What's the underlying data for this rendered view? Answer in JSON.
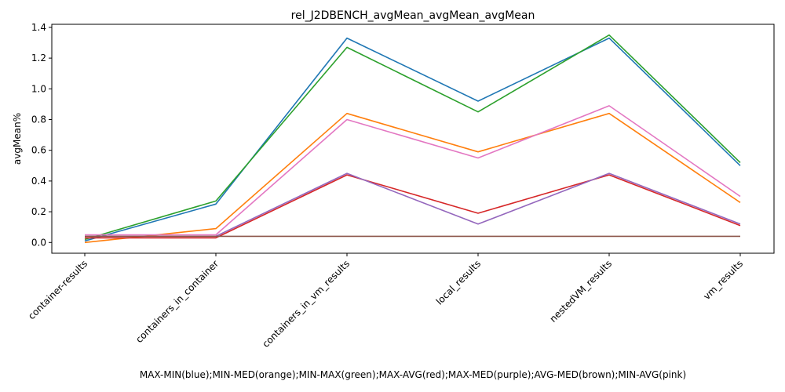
{
  "chart_data": {
    "type": "line",
    "title": "rel_J2DBENCH_avgMean_avgMean_avgMean",
    "ylabel": "avgMean%",
    "xlabel": "MAX-MIN(blue);MIN-MED(orange);MIN-MAX(green);MAX-AVG(red);MAX-MED(purple);AVG-MED(brown);MIN-AVG(pink)",
    "categories": [
      "container-results",
      "containers_in_container",
      "containers_in_vm_results",
      "local_results",
      "nestedVM_results",
      "vm_results"
    ],
    "ylim": [
      -0.07,
      1.42
    ],
    "yticks": [
      0.0,
      0.2,
      0.4,
      0.6,
      0.8,
      1.0,
      1.2,
      1.4
    ],
    "ytick_labels": [
      "0.0",
      "0.2",
      "0.4",
      "0.6",
      "0.8",
      "1.0",
      "1.2",
      "1.4"
    ],
    "grid": false,
    "series": [
      {
        "color": "#1f77b4",
        "values": [
          0.01,
          0.25,
          1.33,
          0.92,
          1.33,
          0.5
        ]
      },
      {
        "color": "#ff7f0e",
        "values": [
          0.0,
          0.09,
          0.84,
          0.59,
          0.84,
          0.26
        ]
      },
      {
        "color": "#2ca02c",
        "values": [
          0.02,
          0.27,
          1.27,
          0.85,
          1.35,
          0.52
        ]
      },
      {
        "color": "#d62728",
        "values": [
          0.03,
          0.03,
          0.44,
          0.19,
          0.44,
          0.11
        ]
      },
      {
        "color": "#9467bd",
        "values": [
          0.04,
          0.04,
          0.45,
          0.12,
          0.45,
          0.12
        ]
      },
      {
        "color": "#8c564b",
        "values": [
          0.04,
          0.04,
          0.04,
          0.04,
          0.04,
          0.04
        ]
      },
      {
        "color": "#e377c2",
        "values": [
          0.05,
          0.05,
          0.8,
          0.55,
          0.89,
          0.3
        ]
      }
    ]
  }
}
